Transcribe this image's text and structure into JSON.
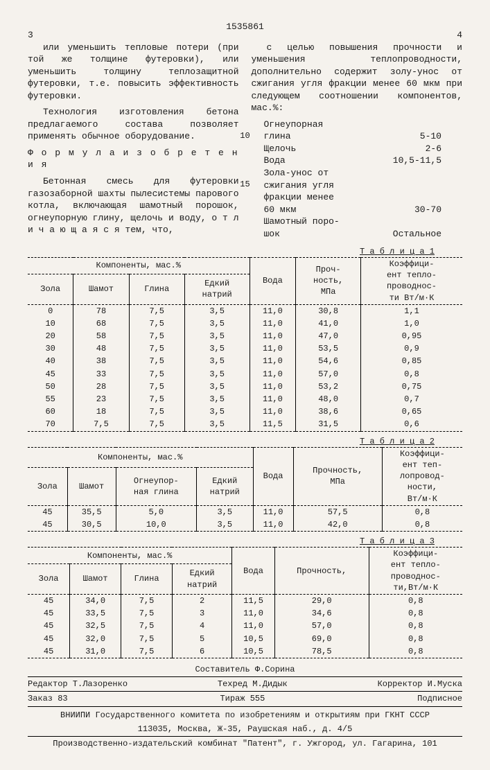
{
  "doc_number": "1535861",
  "colnum_left": "3",
  "colnum_right": "4",
  "left": {
    "p1": "или уменьшить тепловые потери (при той же толщине футеровки), или уменьшить толщину теплозащитной футеровки, т.е. повысить эффективность футеровки.",
    "p2": "Технология изготовления бетона предлагаемого состава позволяет применять обычное оборудование.",
    "formula_label": "Ф о р м у л а   и з о б р е т е н и я",
    "p3": "Бетонная смесь для футеровки газозаборной шахты пылесистемы парового котла, включающая шамотный порошок, огнеупорную глину, щелочь и воду, о т л и ч а ю щ а я с я   тем, что,"
  },
  "right": {
    "p1": "с целью повышения прочности и уменьшения теплопроводности, дополнительно содержит золу-унос от сжигания угля фракции менее 60 мкм при следующем соотношении компонентов, мас.%:",
    "comp": [
      {
        "name": "Огнеупорная",
        "val": ""
      },
      {
        "name": "глина",
        "val": "5-10"
      },
      {
        "name": "Щелочь",
        "val": "2-6"
      },
      {
        "name": "Вода",
        "val": "10,5-11,5"
      },
      {
        "name": "Зола-унос от",
        "val": ""
      },
      {
        "name": "сжигания угля",
        "val": ""
      },
      {
        "name": "фракции менее",
        "val": ""
      },
      {
        "name": "60 мкм",
        "val": "30-70"
      },
      {
        "name": "Шамотный поро-",
        "val": ""
      },
      {
        "name": "шок",
        "val": "Остальное"
      }
    ]
  },
  "line10": "10",
  "line15": "15",
  "tbl1_label": "Т а б л и ц а 1",
  "tbl2_label": "Т а б л и ц а 2",
  "tbl3_label": "Т а б л и ц а 3",
  "tbl1": {
    "h_comp": "Компоненты, мас.%",
    "h_voda": "Вода",
    "h_proch": "Проч-\nность,\nМПа",
    "h_koef": "Коэффици-\nент тепло-\nпроводнос-\nти Вт/м·К",
    "sub": [
      "Зола",
      "Шамот",
      "Глина",
      "Едкий\nнатрий"
    ],
    "rows": [
      [
        "0",
        "78",
        "7,5",
        "3,5",
        "11,0",
        "30,8",
        "1,1"
      ],
      [
        "10",
        "68",
        "7,5",
        "3,5",
        "11,0",
        "41,0",
        "1,0"
      ],
      [
        "20",
        "58",
        "7,5",
        "3,5",
        "11,0",
        "47,0",
        "0,95"
      ],
      [
        "30",
        "48",
        "7,5",
        "3,5",
        "11,0",
        "53,5",
        "0,9"
      ],
      [
        "40",
        "38",
        "7,5",
        "3,5",
        "11,0",
        "54,6",
        "0,85"
      ],
      [
        "45",
        "33",
        "7,5",
        "3,5",
        "11,0",
        "57,0",
        "0,8"
      ],
      [
        "50",
        "28",
        "7,5",
        "3,5",
        "11,0",
        "53,2",
        "0,75"
      ],
      [
        "55",
        "23",
        "7,5",
        "3,5",
        "11,0",
        "48,0",
        "0,7"
      ],
      [
        "60",
        "18",
        "7,5",
        "3,5",
        "11,0",
        "38,6",
        "0,65"
      ],
      [
        "70",
        "7,5",
        "7,5",
        "3,5",
        "11,5",
        "31,5",
        "0,6"
      ]
    ]
  },
  "tbl2": {
    "h_comp": "Компоненты, мас.%",
    "h_voda": "Вода",
    "h_proch": "Прочность,\nМПа",
    "h_koef": "Коэффици-\nент теп-\nлопровод-\nности,\nВт/м·К",
    "sub": [
      "Зола",
      "Шамот",
      "Огнеупор-\nная глина",
      "Едкий\nнатрий"
    ],
    "rows": [
      [
        "45",
        "35,5",
        "5,0",
        "3,5",
        "11,0",
        "57,5",
        "0,8"
      ],
      [
        "45",
        "30,5",
        "10,0",
        "3,5",
        "11,0",
        "42,0",
        "0,8"
      ]
    ]
  },
  "tbl3": {
    "h_comp": "Компоненты, мас.%",
    "h_voda": "Вода",
    "h_proch": "Прочность,",
    "h_koef": "Коэффици-\nент тепло-\nпроводнос-\nти,Вт/м·К",
    "sub": [
      "Зола",
      "Шамот",
      "Глина",
      "Едкий\nнатрий"
    ],
    "rows": [
      [
        "45",
        "34,0",
        "7,5",
        "2",
        "11,5",
        "29,0",
        "0,8"
      ],
      [
        "45",
        "33,5",
        "7,5",
        "3",
        "11,0",
        "34,6",
        "0,8"
      ],
      [
        "45",
        "32,5",
        "7,5",
        "4",
        "11,0",
        "57,0",
        "0,8"
      ],
      [
        "45",
        "32,0",
        "7,5",
        "5",
        "10,5",
        "69,0",
        "0,8"
      ],
      [
        "45",
        "31,0",
        "7,5",
        "6",
        "10,5",
        "78,5",
        "0,8"
      ]
    ]
  },
  "credits": {
    "compiler": "Составитель Ф.Сорина",
    "editor": "Редактор Т.Лазоренко",
    "techred": "Техред М.Дидык",
    "corrector": "Корректор И.Муска"
  },
  "order": {
    "zakaz": "Заказ 83",
    "tirazh": "Тираж 555",
    "sub": "Подписное"
  },
  "footer1": "ВНИИПИ Государственного комитета по изобретениям и открытиям при ГКНТ СССР",
  "footer2": "113035, Москва, Ж-35, Раушская наб., д. 4/5",
  "footer3": "Производственно-издательский комбинат \"Патент\", г. Ужгород, ул. Гагарина, 101"
}
